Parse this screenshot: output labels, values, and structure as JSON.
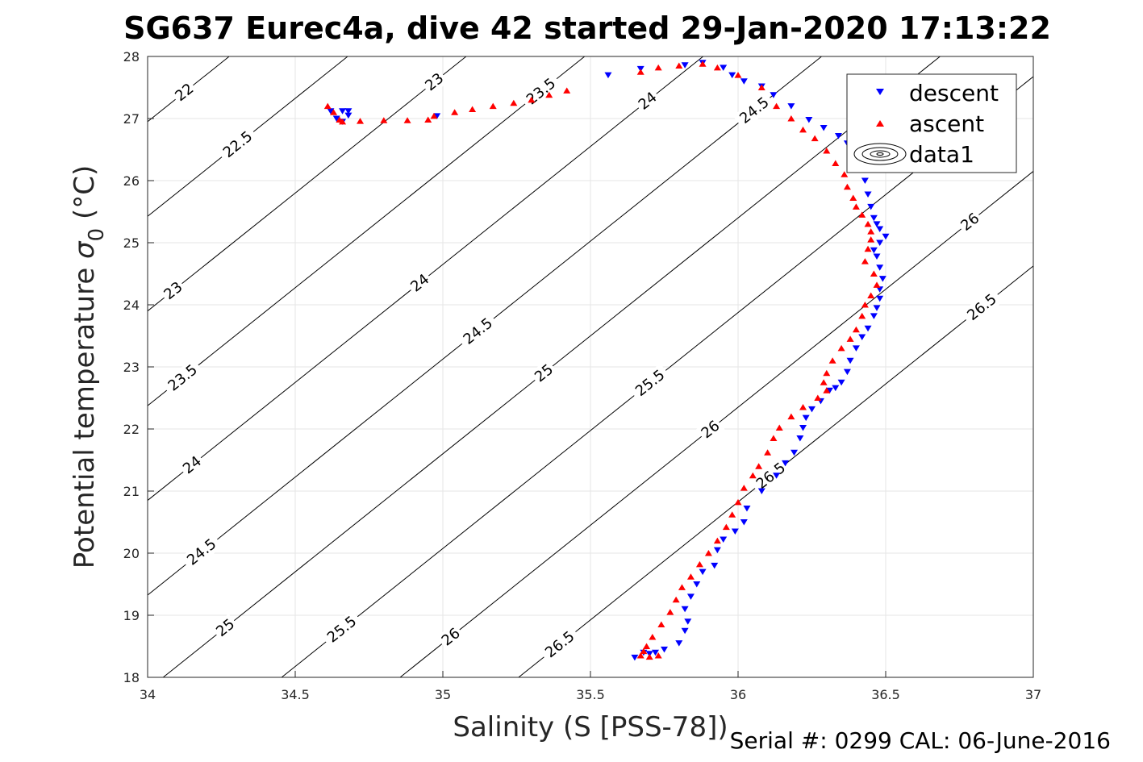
{
  "chart_data": {
    "type": "scatter",
    "title": "SG637 Eurec4a, dive 42 started 29-Jan-2020 17:13:22",
    "xlabel": "Salinity (S [PSS-78])",
    "ylabel": "Potential temperature σ₀ (°C)",
    "ylabel_main": "Potential temperature ",
    "ylabel_sigma": "σ",
    "ylabel_sub": "0",
    "ylabel_unit": " (°C)",
    "xlim": [
      34,
      37
    ],
    "ylim": [
      18,
      28
    ],
    "xticks": [
      "34",
      "34.5",
      "35",
      "35.5",
      "36",
      "36.5",
      "37"
    ],
    "yticks": [
      "18",
      "19",
      "20",
      "21",
      "22",
      "23",
      "24",
      "25",
      "26",
      "27",
      "28"
    ],
    "grid": true,
    "legend_position": "top-right",
    "legend": [
      "descent",
      "ascent",
      "data1"
    ],
    "series": [
      {
        "name": "descent",
        "marker": "triangle-down",
        "color": "#0000ff",
        "x": [
          34.62,
          34.64,
          34.66,
          34.68,
          34.66,
          34.68,
          34.98,
          35.56,
          35.67,
          35.82,
          35.88,
          35.95,
          35.98,
          36.02,
          36.08,
          36.12,
          36.18,
          36.24,
          36.29,
          36.34,
          36.37,
          36.4,
          36.42,
          36.43,
          36.44,
          36.45,
          36.46,
          36.47,
          36.48,
          36.5,
          36.48,
          36.46,
          36.47,
          36.48,
          36.49,
          36.48,
          36.48,
          36.47,
          36.46,
          36.44,
          36.42,
          36.4,
          36.38,
          36.37,
          36.35,
          36.33,
          36.31,
          36.28,
          36.25,
          36.23,
          36.22,
          36.21,
          36.19,
          36.16,
          36.13,
          36.08,
          36.03,
          36.02,
          35.99,
          35.95,
          35.93,
          35.92,
          35.88,
          35.86,
          35.84,
          35.82,
          35.83,
          35.82,
          35.8,
          35.75,
          35.72,
          35.7,
          35.68,
          35.65
        ],
        "y": [
          27.12,
          27.0,
          26.95,
          27.05,
          27.12,
          27.12,
          27.04,
          27.7,
          27.8,
          27.86,
          27.9,
          27.82,
          27.7,
          27.6,
          27.52,
          27.38,
          27.2,
          26.98,
          26.85,
          26.72,
          26.6,
          26.42,
          26.22,
          26.0,
          25.78,
          25.58,
          25.4,
          25.3,
          25.22,
          25.1,
          25.0,
          24.88,
          24.78,
          24.6,
          24.42,
          24.25,
          24.1,
          23.95,
          23.82,
          23.62,
          23.48,
          23.3,
          23.1,
          22.92,
          22.75,
          22.66,
          22.62,
          22.45,
          22.32,
          22.18,
          22.02,
          21.85,
          21.62,
          21.45,
          21.25,
          21.0,
          20.72,
          20.5,
          20.35,
          20.22,
          20.05,
          19.8,
          19.7,
          19.5,
          19.3,
          19.1,
          18.9,
          18.75,
          18.55,
          18.45,
          18.4,
          18.38,
          18.4,
          18.32
        ]
      },
      {
        "name": "ascent",
        "marker": "triangle-up",
        "color": "#ff0000",
        "x": [
          34.61,
          34.63,
          34.65,
          34.66,
          34.72,
          34.8,
          34.88,
          34.95,
          34.97,
          35.04,
          35.1,
          35.17,
          35.24,
          35.3,
          35.36,
          35.42,
          35.67,
          35.73,
          35.8,
          35.88,
          35.93,
          36.0,
          36.08,
          36.13,
          36.18,
          36.22,
          36.26,
          36.3,
          36.33,
          36.36,
          36.37,
          36.39,
          36.4,
          36.42,
          36.44,
          36.45,
          36.45,
          36.44,
          36.43,
          36.46,
          36.47,
          36.45,
          36.43,
          36.42,
          36.4,
          36.38,
          36.35,
          36.32,
          36.3,
          36.29,
          36.3,
          36.27,
          36.22,
          36.18,
          36.14,
          36.12,
          36.1,
          36.07,
          36.05,
          36.02,
          36.0,
          35.98,
          35.96,
          35.93,
          35.9,
          35.87,
          35.84,
          35.81,
          35.79,
          35.77,
          35.74,
          35.71,
          35.69,
          35.68,
          35.67,
          35.7,
          35.73
        ],
        "y": [
          27.2,
          27.1,
          26.98,
          26.95,
          26.96,
          26.97,
          26.97,
          26.98,
          27.04,
          27.1,
          27.15,
          27.2,
          27.25,
          27.3,
          27.38,
          27.45,
          27.75,
          27.82,
          27.85,
          27.88,
          27.82,
          27.7,
          27.5,
          27.2,
          27.0,
          26.82,
          26.68,
          26.48,
          26.28,
          26.1,
          25.9,
          25.72,
          25.58,
          25.45,
          25.3,
          25.18,
          25.05,
          24.9,
          24.7,
          24.5,
          24.32,
          24.15,
          24.0,
          23.82,
          23.6,
          23.45,
          23.3,
          23.1,
          22.9,
          22.75,
          22.62,
          22.5,
          22.35,
          22.2,
          22.02,
          21.85,
          21.62,
          21.4,
          21.25,
          21.05,
          20.82,
          20.62,
          20.42,
          20.2,
          20.0,
          19.82,
          19.62,
          19.45,
          19.25,
          19.05,
          18.85,
          18.65,
          18.5,
          18.42,
          18.35,
          18.33,
          18.35
        ]
      },
      {
        "name": "data1",
        "type": "contour",
        "color": "#000000",
        "levels": [
          22,
          22.5,
          23,
          23.5,
          24,
          24.5,
          25,
          25.5,
          26,
          26.5
        ],
        "labels": [
          "22",
          "22.5",
          "23",
          "23.5",
          "24",
          "24.5",
          "25",
          "25.5",
          "26",
          "26.5"
        ]
      }
    ]
  },
  "footer": "Serial #: 0299 CAL: 06-June-2016",
  "colors": {
    "descent": "#0000ff",
    "ascent": "#ff0000",
    "grid": "#e5e5e5",
    "axis": "#262626"
  }
}
